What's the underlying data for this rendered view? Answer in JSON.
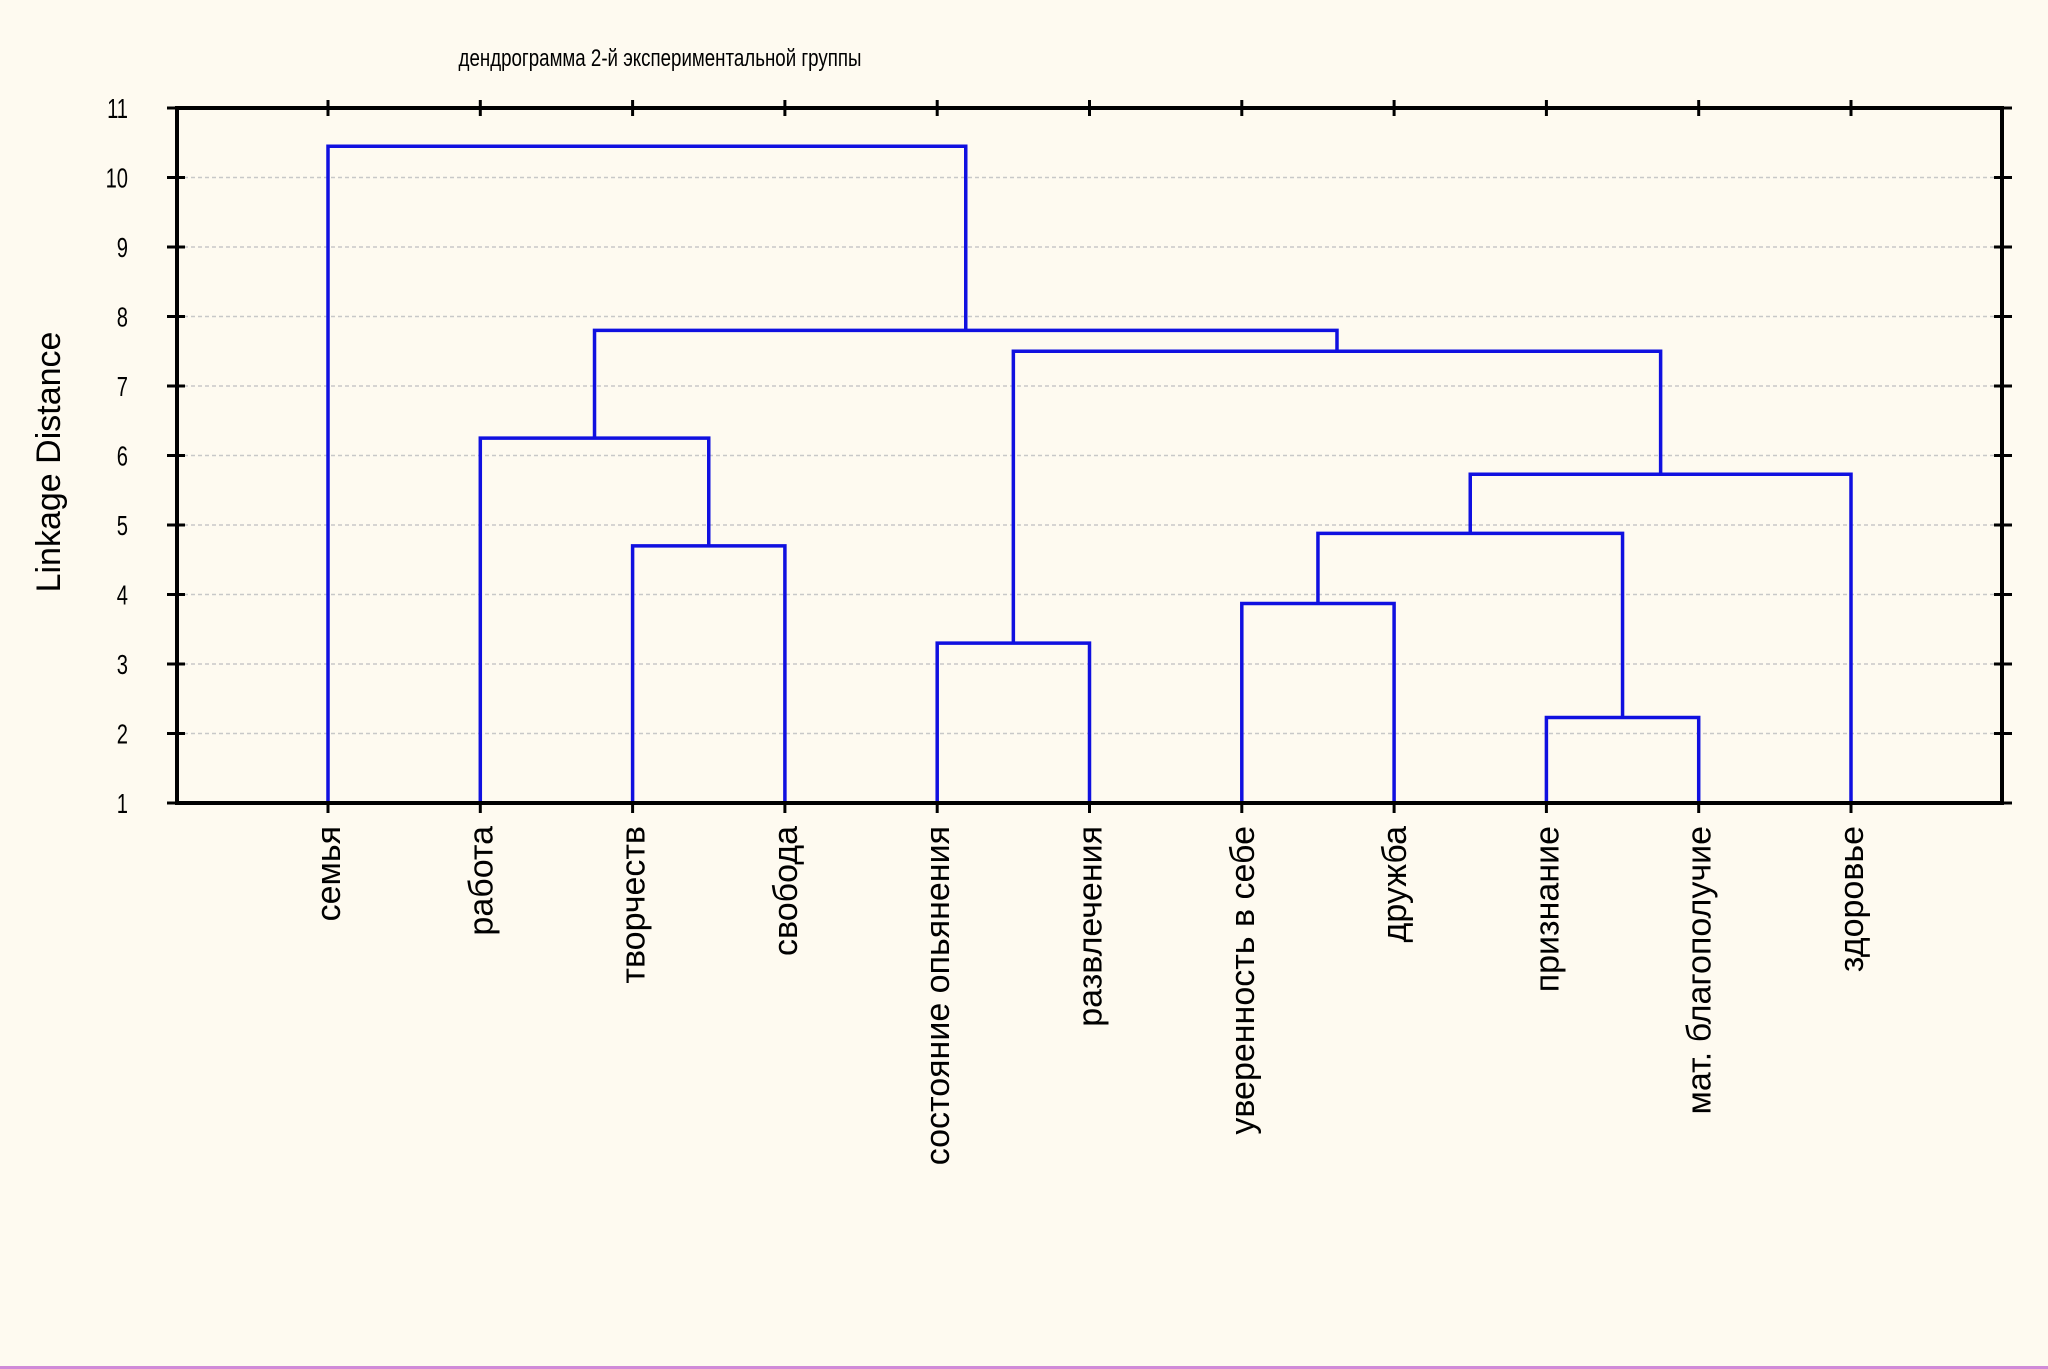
{
  "chart_data": {
    "type": "dendrogram",
    "title": "дендрограмма 2-й экспериментальной группы",
    "xlabel": "",
    "ylabel": "Linkage Distance",
    "ylim": [
      1,
      11
    ],
    "yticks": [
      1,
      2,
      3,
      4,
      5,
      6,
      7,
      8,
      9,
      10,
      11
    ],
    "grid": true,
    "leaves": [
      "семья",
      "работа",
      "творчеств",
      "свобода",
      "состояние опьянения",
      "развлечения",
      "уверенность в себе",
      "дружба",
      "признание",
      "мат. благополучие",
      "здоровье"
    ],
    "merges": [
      {
        "id": 11,
        "left": 2,
        "right": 3,
        "height": 4.7
      },
      {
        "id": 12,
        "left": 1,
        "right": 11,
        "height": 6.25
      },
      {
        "id": 13,
        "left": 4,
        "right": 5,
        "height": 3.3
      },
      {
        "id": 14,
        "left": 6,
        "right": 7,
        "height": 3.87
      },
      {
        "id": 15,
        "left": 8,
        "right": 9,
        "height": 2.23
      },
      {
        "id": 16,
        "left": 14,
        "right": 15,
        "height": 4.88
      },
      {
        "id": 17,
        "left": 16,
        "right": 10,
        "height": 5.73
      },
      {
        "id": 18,
        "left": 13,
        "right": 17,
        "height": 7.5
      },
      {
        "id": 19,
        "left": 12,
        "right": 18,
        "height": 7.8
      },
      {
        "id": 20,
        "left": 0,
        "right": 19,
        "height": 10.45
      }
    ],
    "colors": {
      "link": "#1010e0",
      "axis": "#000000",
      "grid": "#c8c8c8",
      "background": "#fefaf0"
    }
  }
}
